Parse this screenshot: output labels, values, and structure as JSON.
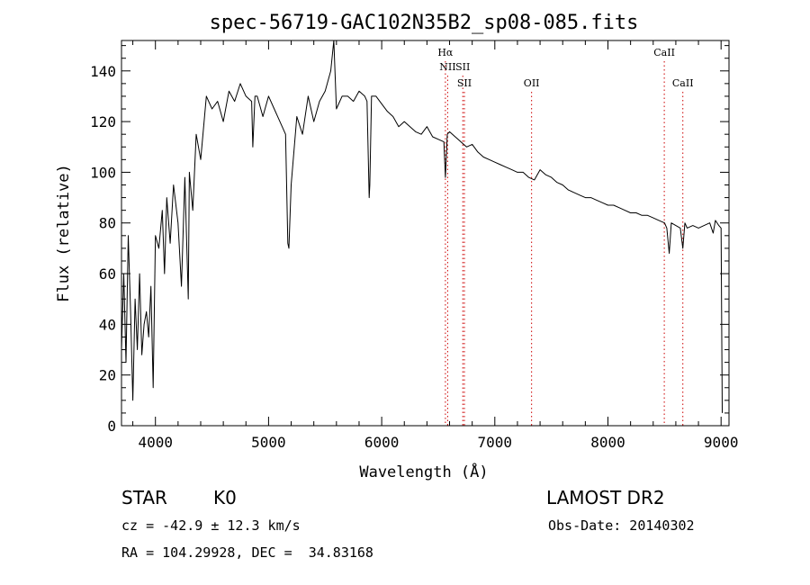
{
  "chart_data": {
    "type": "line",
    "title": "spec-56719-GAC102N35B2_sp08-085.fits",
    "xlabel": "Wavelength (Å)",
    "ylabel": "Flux (relative)",
    "xlim": [
      3700,
      9070
    ],
    "ylim": [
      0,
      152
    ],
    "xticks": [
      4000,
      5000,
      6000,
      7000,
      8000,
      9000
    ],
    "yticks": [
      0,
      20,
      40,
      60,
      80,
      100,
      120,
      140
    ],
    "grid": false,
    "line_color": "#000000",
    "marker_color": "#cc0000",
    "series": [
      {
        "x": [
          3700,
          3720,
          3740,
          3760,
          3780,
          3800,
          3820,
          3840,
          3860,
          3880,
          3900,
          3920,
          3940,
          3960,
          3980,
          4000,
          4030,
          4060,
          4080,
          4100,
          4130,
          4160,
          4200,
          4230,
          4260,
          4290,
          4300,
          4330,
          4360,
          4400,
          4450,
          4500,
          4550,
          4600,
          4650,
          4700,
          4750,
          4800,
          4850,
          4861,
          4880,
          4900,
          4950,
          5000,
          5050,
          5100,
          5150,
          5170,
          5180,
          5200,
          5250,
          5300,
          5350,
          5400,
          5450,
          5500,
          5550,
          5577,
          5600,
          5650,
          5700,
          5750,
          5800,
          5850,
          5870,
          5889,
          5895,
          5910,
          5950,
          6000,
          6050,
          6100,
          6150,
          6200,
          6250,
          6300,
          6350,
          6400,
          6450,
          6500,
          6550,
          6563,
          6580,
          6600,
          6650,
          6700,
          6750,
          6800,
          6850,
          6900,
          6950,
          7000,
          7050,
          7100,
          7150,
          7200,
          7250,
          7300,
          7350,
          7400,
          7450,
          7500,
          7550,
          7600,
          7650,
          7700,
          7750,
          7800,
          7850,
          7900,
          7950,
          8000,
          8050,
          8100,
          8150,
          8200,
          8250,
          8300,
          8350,
          8400,
          8450,
          8500,
          8520,
          8542,
          8560,
          8600,
          8640,
          8662,
          8680,
          8700,
          8750,
          8800,
          8850,
          8900,
          8930,
          8950,
          8980,
          9000,
          9010
        ],
        "y": [
          30,
          60,
          25,
          75,
          45,
          10,
          50,
          30,
          60,
          28,
          40,
          45,
          35,
          55,
          15,
          75,
          70,
          85,
          60,
          90,
          72,
          95,
          80,
          55,
          98,
          50,
          100,
          85,
          115,
          105,
          130,
          125,
          128,
          120,
          132,
          128,
          135,
          130,
          128,
          110,
          130,
          130,
          122,
          130,
          125,
          120,
          115,
          72,
          70,
          95,
          122,
          115,
          130,
          120,
          128,
          132,
          140,
          152,
          125,
          130,
          130,
          128,
          132,
          130,
          128,
          90,
          95,
          130,
          130,
          127,
          124,
          122,
          118,
          120,
          118,
          116,
          115,
          118,
          114,
          113,
          112,
          98,
          115,
          116,
          114,
          112,
          110,
          111,
          108,
          106,
          105,
          104,
          103,
          102,
          101,
          100,
          100,
          98,
          97,
          101,
          99,
          98,
          96,
          95,
          93,
          92,
          91,
          90,
          90,
          89,
          88,
          87,
          87,
          86,
          85,
          84,
          84,
          83,
          83,
          82,
          81,
          80,
          78,
          68,
          80,
          79,
          78,
          70,
          80,
          78,
          79,
          78,
          79,
          80,
          76,
          81,
          79,
          78,
          5
        ]
      }
    ],
    "line_markers": [
      {
        "label": "Hα",
        "x": 6563,
        "label_row": 1
      },
      {
        "label": "NII",
        "x": 6583,
        "label_row": 2
      },
      {
        "label": "SII",
        "x": 6717,
        "label_row": 2
      },
      {
        "label": "SII",
        "x": 6731,
        "label_row": 3
      },
      {
        "label": "OII",
        "x": 7325,
        "label_row": 3
      },
      {
        "label": "CaII",
        "x": 8498,
        "label_row": 1
      },
      {
        "label": "CaII",
        "x": 8662,
        "label_row": 3
      }
    ]
  },
  "info": {
    "object_class": "STAR",
    "subclass": "K0",
    "survey": "LAMOST DR2",
    "velocity": "cz = -42.9 ± 12.3 km/s",
    "obs_date": "Obs-Date: 20140302",
    "coords": "RA = 104.29928, DEC =  34.83168"
  }
}
